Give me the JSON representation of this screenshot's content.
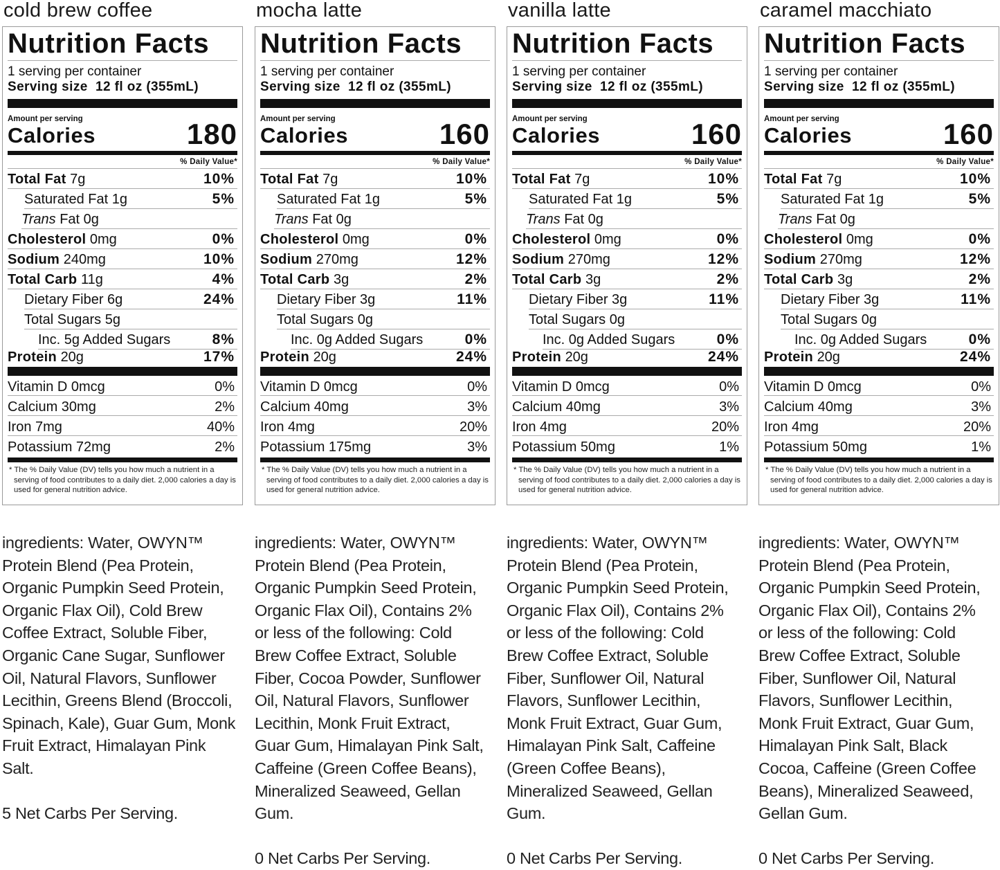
{
  "common": {
    "title": "Nutrition Facts",
    "servings": "1 serving per container",
    "serving_size_label": "Serving size",
    "serving_size": "12 fl oz (355mL)",
    "amount_per_serving": "Amount per serving",
    "calories_label": "Calories",
    "daily_value_header": "% Daily Value*",
    "footnote": "* The % Daily Value (DV) tells you how much a nutrient in a serving of food contributes to a daily diet. 2,000 calories a day is used for general nutrition advice."
  },
  "products": [
    {
      "name": "cold brew coffee",
      "calories": "180",
      "nutrients": [
        {
          "label": "Total Fat",
          "amount": "7g",
          "dv": "10%",
          "style": "main"
        },
        {
          "label": "Saturated Fat 1g",
          "amount": "",
          "dv": "5%",
          "style": "sub"
        },
        {
          "label": "Trans",
          "amount": "Fat 0g",
          "dv": "",
          "style": "trans"
        },
        {
          "label": "Cholesterol",
          "amount": "0mg",
          "dv": "0%",
          "style": "main"
        },
        {
          "label": "Sodium",
          "amount": "240mg",
          "dv": "10%",
          "style": "main"
        },
        {
          "label": "Total Carb",
          "amount": "11g",
          "dv": "4%",
          "style": "main"
        },
        {
          "label": "Dietary Fiber 6g",
          "amount": "",
          "dv": "24%",
          "style": "sub"
        },
        {
          "label": "Total Sugars 5g",
          "amount": "",
          "dv": "",
          "style": "sub"
        },
        {
          "label": "Inc. 5g Added Sugars",
          "amount": "",
          "dv": "8%",
          "style": "subsub"
        },
        {
          "label": "Protein",
          "amount": "20g",
          "dv": "17%",
          "style": "prot"
        }
      ],
      "vitamins": [
        {
          "label": "Vitamin D 0mcg",
          "dv": "0%"
        },
        {
          "label": "Calcium 30mg",
          "dv": "2%"
        },
        {
          "label": "Iron 7mg",
          "dv": "40%"
        },
        {
          "label": "Potassium 72mg",
          "dv": "2%"
        }
      ],
      "ingredients": [
        "ingredients: Water, OWYN™",
        "Protein Blend (Pea Protein,",
        "Organic Pumpkin Seed Protein,",
        "Organic Flax Oil), Cold Brew",
        "Coffee Extract, Soluble Fiber,",
        "Organic Cane Sugar, Sunflower",
        "Oil, Natural Flavors, Sunflower",
        "Lecithin, Greens Blend (Broccoli,",
        "Spinach, Kale), Guar Gum, Monk",
        "Fruit Extract, Himalayan Pink",
        "Salt."
      ],
      "net_carbs": "5 Net Carbs Per Serving."
    },
    {
      "name": "mocha latte",
      "calories": "160",
      "nutrients": [
        {
          "label": "Total Fat",
          "amount": "7g",
          "dv": "10%",
          "style": "main"
        },
        {
          "label": "Saturated Fat 1g",
          "amount": "",
          "dv": "5%",
          "style": "sub"
        },
        {
          "label": "Trans",
          "amount": "Fat 0g",
          "dv": "",
          "style": "trans"
        },
        {
          "label": "Cholesterol",
          "amount": "0mg",
          "dv": "0%",
          "style": "main"
        },
        {
          "label": "Sodium",
          "amount": "270mg",
          "dv": "12%",
          "style": "main"
        },
        {
          "label": "Total Carb",
          "amount": "3g",
          "dv": "2%",
          "style": "main"
        },
        {
          "label": "Dietary Fiber 3g",
          "amount": "",
          "dv": "11%",
          "style": "sub"
        },
        {
          "label": "Total Sugars 0g",
          "amount": "",
          "dv": "",
          "style": "sub"
        },
        {
          "label": "Inc. 0g Added Sugars",
          "amount": "",
          "dv": "0%",
          "style": "subsub"
        },
        {
          "label": "Protein",
          "amount": "20g",
          "dv": "24%",
          "style": "prot"
        }
      ],
      "vitamins": [
        {
          "label": "Vitamin D 0mcg",
          "dv": "0%"
        },
        {
          "label": "Calcium 40mg",
          "dv": "3%"
        },
        {
          "label": "Iron 4mg",
          "dv": "20%"
        },
        {
          "label": "Potassium 175mg",
          "dv": "3%"
        }
      ],
      "ingredients": [
        "ingredients: Water, OWYN™",
        "Protein Blend (Pea Protein,",
        "Organic Pumpkin Seed Protein,",
        "Organic Flax Oil), Contains 2%",
        "or less of the following:  Cold",
        "Brew Coffee Extract, Soluble",
        "Fiber, Cocoa Powder, Sunflower",
        "Oil, Natural Flavors, Sunflower",
        "Lecithin, Monk Fruit Extract,",
        "Guar Gum, Himalayan Pink Salt,",
        "Caffeine (Green Coffee Beans),",
        "Mineralized Seaweed, Gellan",
        "Gum."
      ],
      "net_carbs": "0 Net Carbs Per Serving."
    },
    {
      "name": "vanilla latte",
      "calories": "160",
      "nutrients": [
        {
          "label": "Total Fat",
          "amount": "7g",
          "dv": "10%",
          "style": "main"
        },
        {
          "label": "Saturated Fat 1g",
          "amount": "",
          "dv": "5%",
          "style": "sub"
        },
        {
          "label": "Trans",
          "amount": "Fat 0g",
          "dv": "",
          "style": "trans"
        },
        {
          "label": "Cholesterol",
          "amount": "0mg",
          "dv": "0%",
          "style": "main"
        },
        {
          "label": "Sodium",
          "amount": "270mg",
          "dv": "12%",
          "style": "main"
        },
        {
          "label": "Total Carb",
          "amount": "3g",
          "dv": "2%",
          "style": "main"
        },
        {
          "label": "Dietary Fiber 3g",
          "amount": "",
          "dv": "11%",
          "style": "sub"
        },
        {
          "label": "Total Sugars 0g",
          "amount": "",
          "dv": "",
          "style": "sub"
        },
        {
          "label": "Inc. 0g Added Sugars",
          "amount": "",
          "dv": "0%",
          "style": "subsub"
        },
        {
          "label": "Protein",
          "amount": "20g",
          "dv": "24%",
          "style": "prot"
        }
      ],
      "vitamins": [
        {
          "label": "Vitamin D 0mcg",
          "dv": "0%"
        },
        {
          "label": "Calcium 40mg",
          "dv": "3%"
        },
        {
          "label": "Iron 4mg",
          "dv": "20%"
        },
        {
          "label": "Potassium 50mg",
          "dv": "1%"
        }
      ],
      "ingredients": [
        "ingredients: Water, OWYN™",
        "Protein Blend (Pea Protein,",
        "Organic Pumpkin Seed Protein,",
        "Organic Flax Oil), Contains 2%",
        "or less of the following:  Cold",
        "Brew Coffee Extract, Soluble",
        "Fiber, Sunflower Oil, Natural",
        "Flavors, Sunflower Lecithin,",
        "Monk Fruit Extract, Guar Gum,",
        "Himalayan Pink Salt, Caffeine",
        "(Green Coffee Beans),",
        "Mineralized Seaweed, Gellan",
        "Gum."
      ],
      "net_carbs": "0 Net Carbs Per Serving."
    },
    {
      "name": "caramel macchiato",
      "calories": "160",
      "nutrients": [
        {
          "label": "Total Fat",
          "amount": "7g",
          "dv": "10%",
          "style": "main"
        },
        {
          "label": "Saturated Fat 1g",
          "amount": "",
          "dv": "5%",
          "style": "sub"
        },
        {
          "label": "Trans",
          "amount": "Fat 0g",
          "dv": "",
          "style": "trans"
        },
        {
          "label": "Cholesterol",
          "amount": "0mg",
          "dv": "0%",
          "style": "main"
        },
        {
          "label": "Sodium",
          "amount": "270mg",
          "dv": "12%",
          "style": "main"
        },
        {
          "label": "Total Carb",
          "amount": " 3g",
          "dv": "2%",
          "style": "main"
        },
        {
          "label": "Dietary Fiber 3g",
          "amount": "",
          "dv": "11%",
          "style": "sub"
        },
        {
          "label": "Total Sugars 0g",
          "amount": "",
          "dv": "",
          "style": "sub"
        },
        {
          "label": "Inc. 0g Added Sugars",
          "amount": "",
          "dv": "0%",
          "style": "subsub"
        },
        {
          "label": "Protein",
          "amount": "20g",
          "dv": "24%",
          "style": "prot"
        }
      ],
      "vitamins": [
        {
          "label": "Vitamin D 0mcg",
          "dv": "0%"
        },
        {
          "label": "Calcium 40mg",
          "dv": "3%"
        },
        {
          "label": "Iron 4mg",
          "dv": "20%"
        },
        {
          "label": "Potassium 50mg",
          "dv": "1%"
        }
      ],
      "ingredients": [
        "ingredients: Water, OWYN™",
        "Protein Blend (Pea Protein,",
        "Organic Pumpkin Seed Protein,",
        "Organic Flax Oil), Contains 2%",
        "or less of the following:  Cold",
        "Brew Coffee Extract, Soluble",
        "Fiber, Sunflower Oil, Natural",
        "Flavors, Sunflower Lecithin,",
        "Monk Fruit Extract, Guar Gum,",
        "Himalayan Pink Salt, Black",
        "Cocoa, Caffeine (Green Coffee",
        "Beans), Mineralized Seaweed,",
        "Gellan Gum."
      ],
      "net_carbs": "0 Net Carbs Per Serving."
    }
  ]
}
